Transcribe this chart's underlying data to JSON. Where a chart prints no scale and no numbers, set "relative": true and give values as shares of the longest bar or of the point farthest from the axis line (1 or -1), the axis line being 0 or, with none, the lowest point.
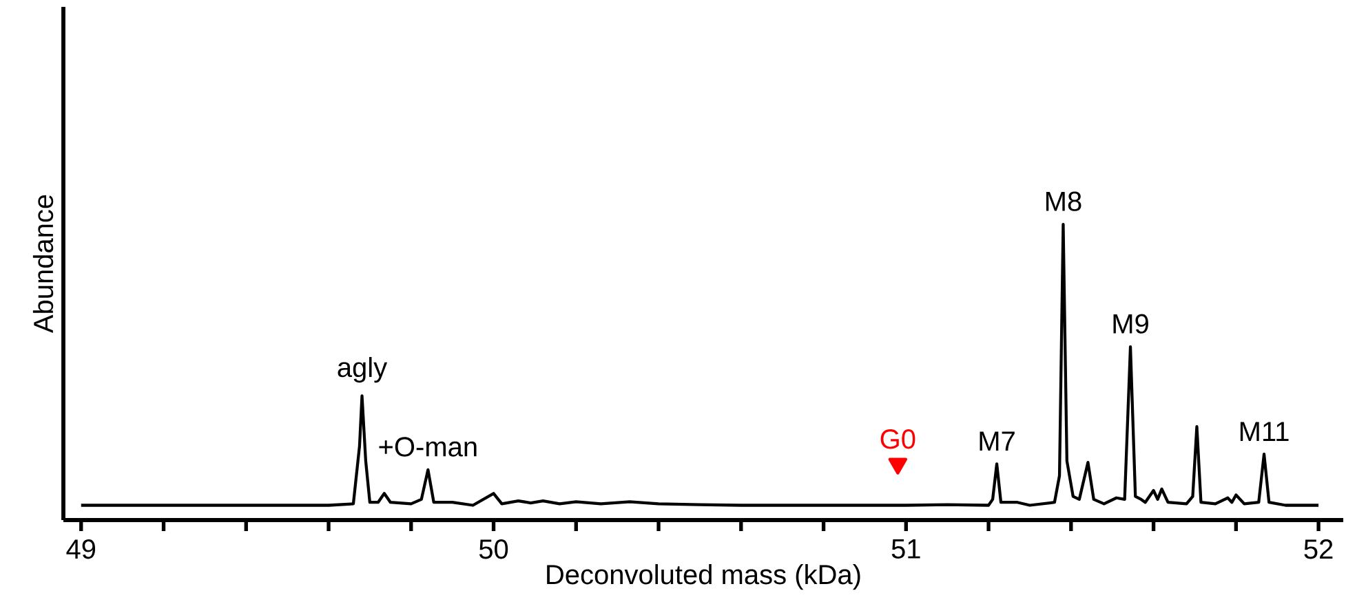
{
  "chart_data": {
    "type": "line",
    "relative": true,
    "xlabel": "Deconvoluted mass (kDa)",
    "ylabel": "Abundance",
    "xlim": [
      48.957,
      52.06
    ],
    "xticks": [
      49,
      {
        "value": 49.2,
        "label": null
      },
      {
        "value": 49.4,
        "label": null
      },
      {
        "value": 49.6,
        "label": null
      },
      {
        "value": 49.8,
        "label": null
      },
      50,
      {
        "value": 50.2,
        "label": null
      },
      {
        "value": 50.4,
        "label": null
      },
      {
        "value": 50.6,
        "label": null
      },
      {
        "value": 50.8,
        "label": null
      },
      51,
      {
        "value": 51.2,
        "label": null
      },
      {
        "value": 51.4,
        "label": null
      },
      {
        "value": 51.6,
        "label": null
      },
      {
        "value": 51.8,
        "label": null
      },
      52
    ],
    "grid": false,
    "line_style": "solid",
    "series": [
      {
        "color": "#000000",
        "x": [
          49.0,
          49.2,
          49.4,
          49.6,
          49.66,
          49.675,
          49.681,
          49.69,
          49.7,
          49.72,
          49.735,
          49.75,
          49.8,
          49.825,
          49.841,
          49.855,
          49.9,
          49.95,
          50.0,
          50.02,
          50.06,
          50.09,
          50.12,
          50.16,
          50.2,
          50.26,
          50.33,
          50.4,
          50.5,
          50.6,
          50.8,
          51.0,
          51.1,
          51.2,
          51.21,
          51.22,
          51.23,
          51.27,
          51.3,
          51.36,
          51.372,
          51.381,
          51.39,
          51.405,
          51.42,
          51.441,
          51.455,
          51.48,
          51.51,
          51.53,
          51.544,
          51.556,
          51.57,
          51.58,
          51.6,
          51.61,
          51.62,
          51.635,
          51.68,
          51.695,
          51.705,
          51.715,
          51.75,
          51.78,
          51.79,
          51.8,
          51.82,
          51.855,
          51.868,
          51.88,
          51.92,
          52.0
        ],
        "values": [
          0.05,
          0.05,
          0.05,
          0.05,
          0.055,
          0.25,
          0.42,
          0.2,
          0.06,
          0.06,
          0.09,
          0.06,
          0.055,
          0.07,
          0.17,
          0.06,
          0.06,
          0.05,
          0.09,
          0.055,
          0.065,
          0.058,
          0.065,
          0.055,
          0.062,
          0.055,
          0.062,
          0.055,
          0.052,
          0.05,
          0.05,
          0.05,
          0.052,
          0.05,
          0.07,
          0.19,
          0.06,
          0.06,
          0.05,
          0.06,
          0.15,
          1.0,
          0.2,
          0.08,
          0.07,
          0.195,
          0.07,
          0.055,
          0.075,
          0.07,
          0.586,
          0.08,
          0.07,
          0.06,
          0.1,
          0.07,
          0.105,
          0.06,
          0.055,
          0.08,
          0.316,
          0.06,
          0.055,
          0.075,
          0.06,
          0.085,
          0.055,
          0.06,
          0.223,
          0.06,
          0.05,
          0.05
        ]
      },
      {
        "type": "scatter",
        "name": "G0",
        "color": "#ff0000",
        "marker": "triangle",
        "x": [
          50.98
        ],
        "values": [
          0.19
        ]
      }
    ],
    "annotations": [
      {
        "text": "agly",
        "x": 49.681,
        "y": 0.42
      },
      {
        "text": "+O-man",
        "x": 49.841,
        "y": 0.17
      },
      {
        "text": "M7",
        "x": 51.22,
        "y": 0.19
      },
      {
        "text": "M8",
        "x": 51.381,
        "y": 1.0
      },
      {
        "text": "M9",
        "x": 51.544,
        "y": 0.586
      },
      {
        "text": "M11",
        "x": 51.868,
        "y": 0.223
      }
    ]
  }
}
